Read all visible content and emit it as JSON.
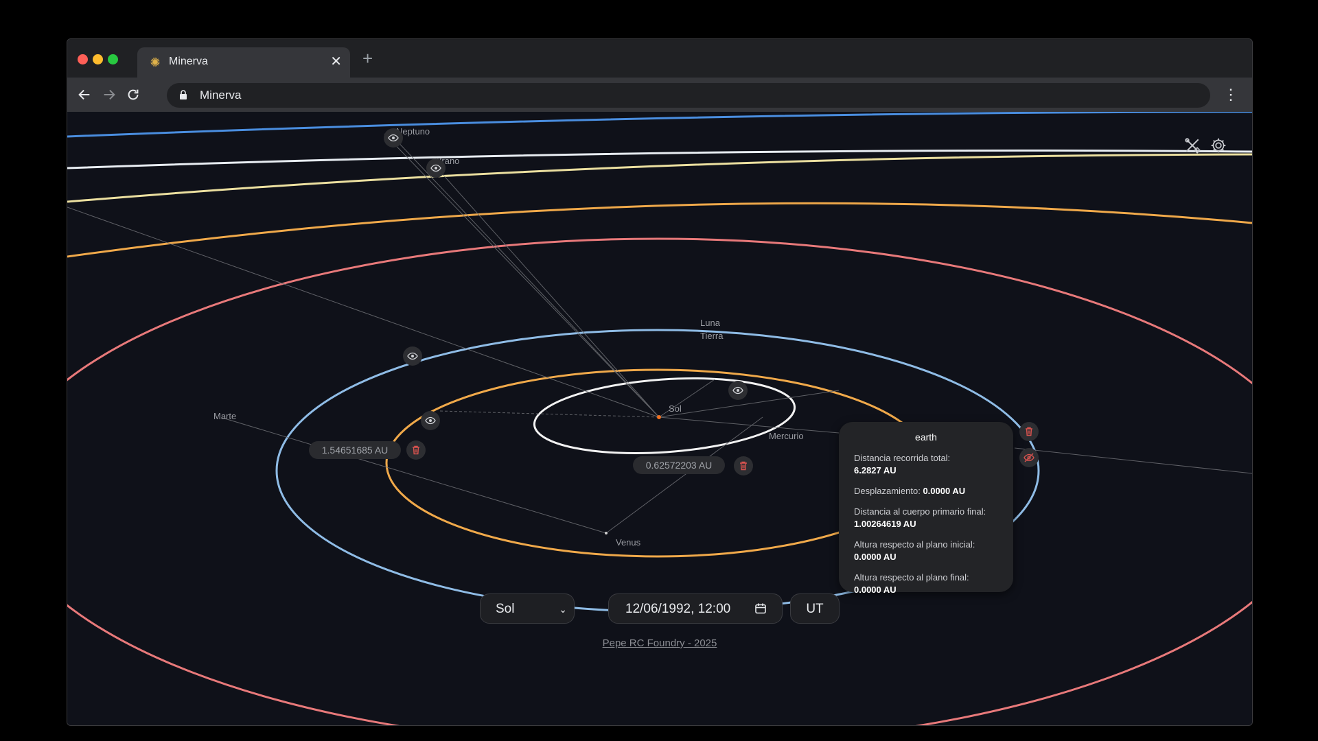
{
  "browser": {
    "tab_title": "Minerva",
    "tab_close": "✕",
    "new_tab": "+",
    "url": "Minerva",
    "kebab": "⋮"
  },
  "labels": {
    "neptune": "Neptuno",
    "uranus": "Urano",
    "moon": "Luna",
    "earth": "Tierra",
    "sun": "Sol",
    "mercury": "Mercurio",
    "venus": "Venus",
    "mars": "Marte"
  },
  "measurements": {
    "left_distance": "1.54651685 AU",
    "center_distance": "0.62572203 AU"
  },
  "tooltip": {
    "title": "earth",
    "rows": [
      {
        "label": "Distancia recorrida total:",
        "value": "6.2827 AU"
      },
      {
        "label": "Desplazamiento:",
        "value": "0.0000 AU"
      },
      {
        "label": "Distancia al cuerpo primario final:",
        "value": "1.00264619 AU"
      },
      {
        "label": "Altura respecto al plano inicial:",
        "value": "0.0000 AU"
      },
      {
        "label": "Altura respecto al plano final:",
        "value": "0.0000 AU"
      }
    ]
  },
  "controls": {
    "reference_body": "Sol",
    "date": "12/06/1992, 12:00",
    "timezone": "UT"
  },
  "footer": {
    "credit": "Pepe RC Foundry - 2025"
  },
  "colors": {
    "background": "#0f1119",
    "orbit_mars": "#e8797a",
    "orbit_earth": "#8fbce6",
    "orbit_venus": "#f0a94a",
    "orbit_mercury": "#f2f2f2",
    "orbit_neptune": "#4a8ee0",
    "orbit_uranus": "#e8edf2",
    "orbit_saturn": "#ece0a0",
    "orbit_jupiter": "#f0a94a",
    "delete_red": "#d9534f"
  }
}
